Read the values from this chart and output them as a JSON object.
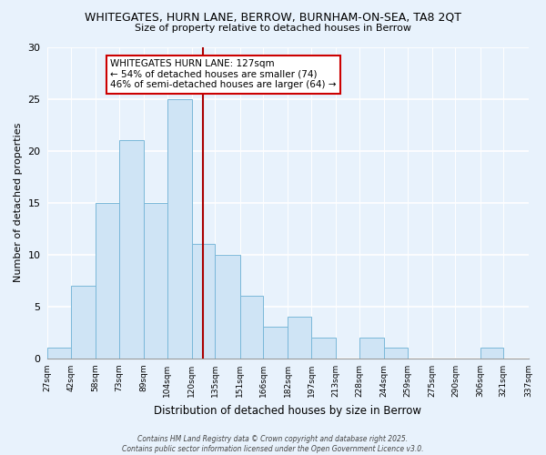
{
  "title": "WHITEGATES, HURN LANE, BERROW, BURNHAM-ON-SEA, TA8 2QT",
  "subtitle": "Size of property relative to detached houses in Berrow",
  "xlabel": "Distribution of detached houses by size in Berrow",
  "ylabel": "Number of detached properties",
  "bin_edges": [
    27,
    42,
    58,
    73,
    89,
    104,
    120,
    135,
    151,
    166,
    182,
    197,
    213,
    228,
    244,
    259,
    275,
    290,
    306,
    321,
    337
  ],
  "bin_labels": [
    "27sqm",
    "42sqm",
    "58sqm",
    "73sqm",
    "89sqm",
    "104sqm",
    "120sqm",
    "135sqm",
    "151sqm",
    "166sqm",
    "182sqm",
    "197sqm",
    "213sqm",
    "228sqm",
    "244sqm",
    "259sqm",
    "275sqm",
    "290sqm",
    "306sqm",
    "321sqm",
    "337sqm"
  ],
  "counts": [
    1,
    7,
    15,
    21,
    15,
    25,
    11,
    10,
    6,
    3,
    4,
    2,
    0,
    2,
    1,
    0,
    0,
    0,
    1,
    0
  ],
  "bar_facecolor": "#cfe4f5",
  "bar_edgecolor": "#7ab8d9",
  "ylim": [
    0,
    30
  ],
  "yticks": [
    0,
    5,
    10,
    15,
    20,
    25,
    30
  ],
  "vline_x": 127,
  "vline_color": "#aa0000",
  "annotation_title": "WHITEGATES HURN LANE: 127sqm",
  "annotation_line1": "← 54% of detached houses are smaller (74)",
  "annotation_line2": "46% of semi-detached houses are larger (64) →",
  "background_color": "#e8f2fc",
  "footer_line1": "Contains HM Land Registry data © Crown copyright and database right 2025.",
  "footer_line2": "Contains public sector information licensed under the Open Government Licence v3.0."
}
